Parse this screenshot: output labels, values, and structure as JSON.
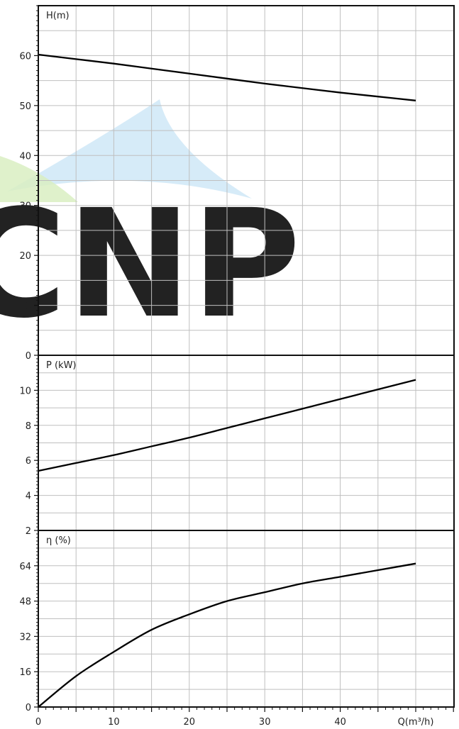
{
  "watermark": {
    "text": "CNP",
    "color": "#e6e6e6",
    "swoosh_colors": [
      "#cfe8f7",
      "#d9efc2"
    ]
  },
  "axis_color": "#111111",
  "grid_color": "#bfbfbf",
  "curve_color": "#000000",
  "x_axis": {
    "label": "Q(m³/h)",
    "ticks": [
      0,
      10,
      20,
      30,
      40
    ],
    "range": [
      0,
      55
    ],
    "minor_step": 1
  },
  "chart_data": [
    {
      "type": "line",
      "panel": "head",
      "ylabel": "H(m)",
      "ylim": [
        0,
        70
      ],
      "yticks": [
        0,
        10,
        20,
        30,
        40,
        50,
        60
      ],
      "series": [
        {
          "x": [
            0,
            5,
            10,
            15,
            20,
            25,
            30,
            35,
            40,
            45,
            50
          ],
          "y": [
            60.2,
            59.3,
            58.4,
            57.4,
            56.4,
            55.4,
            54.4,
            53.5,
            52.6,
            51.8,
            51.0
          ]
        }
      ]
    },
    {
      "type": "line",
      "panel": "power",
      "ylabel": "P (kW)",
      "ylim": [
        2,
        12
      ],
      "yticks": [
        2,
        4,
        6,
        8,
        10
      ],
      "series": [
        {
          "x": [
            0,
            5,
            10,
            15,
            20,
            25,
            30,
            35,
            40,
            45,
            50
          ],
          "y": [
            5.4,
            5.85,
            6.3,
            6.8,
            7.3,
            7.85,
            8.4,
            8.95,
            9.5,
            10.05,
            10.6
          ]
        }
      ]
    },
    {
      "type": "line",
      "panel": "efficiency",
      "ylabel": "η (%)",
      "ylim": [
        0,
        80
      ],
      "yticks": [
        0,
        16,
        32,
        48,
        64
      ],
      "series": [
        {
          "x": [
            0,
            5,
            10,
            15,
            20,
            25,
            30,
            35,
            40,
            45,
            50
          ],
          "y": [
            0,
            14,
            25,
            35,
            42,
            48,
            52,
            56,
            59,
            62,
            65
          ]
        }
      ]
    }
  ]
}
